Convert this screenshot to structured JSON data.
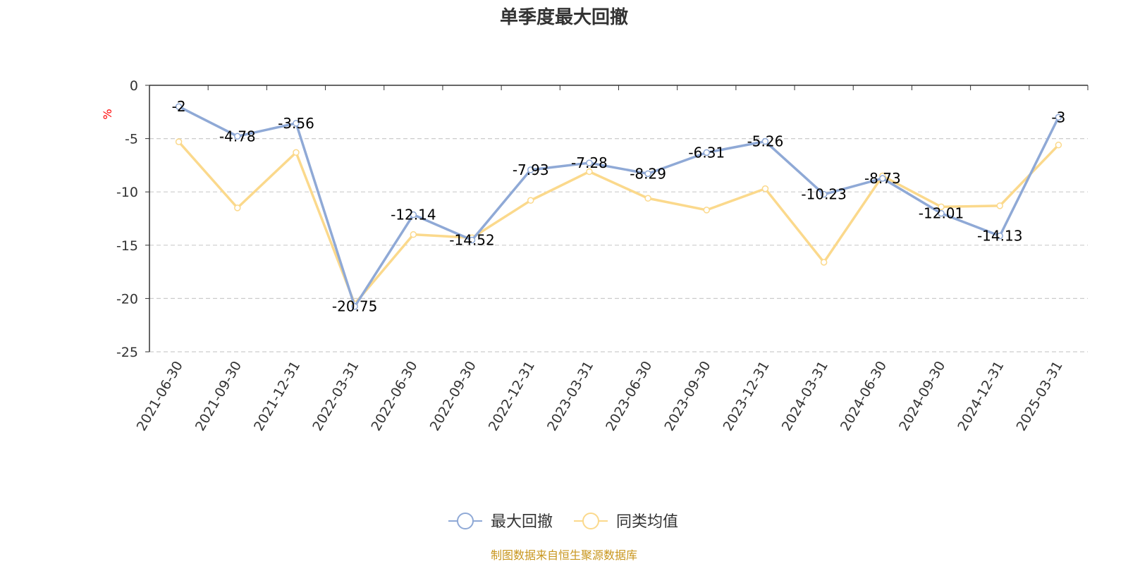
{
  "chart_data": {
    "type": "line",
    "title": "单季度最大回撤",
    "ylabel": "%",
    "categories": [
      "2021-06-30",
      "2021-09-30",
      "2021-12-31",
      "2022-03-31",
      "2022-06-30",
      "2022-09-30",
      "2022-12-31",
      "2023-03-31",
      "2023-06-30",
      "2023-09-30",
      "2023-12-31",
      "2024-03-31",
      "2024-06-30",
      "2024-09-30",
      "2024-12-31",
      "2025-03-31"
    ],
    "ylim": [
      -25,
      0
    ],
    "yticks": [
      "0",
      "-5",
      "-10",
      "-15",
      "-20",
      "-25"
    ],
    "grid": true,
    "legend_position": "bottom",
    "series": [
      {
        "name": "最大回撤",
        "color": "#8fa9d6",
        "labels": true,
        "values": [
          -2,
          -4.78,
          -3.56,
          -20.75,
          -12.14,
          -14.52,
          -7.93,
          -7.28,
          -8.29,
          -6.31,
          -5.26,
          -10.23,
          -8.73,
          -12.01,
          -14.13,
          -3
        ]
      },
      {
        "name": "同类均值",
        "color": "#fbd98c",
        "labels": false,
        "values": [
          -5.3,
          -11.5,
          -6.3,
          -20.5,
          -14.0,
          -14.3,
          -10.8,
          -8.1,
          -10.6,
          -11.7,
          -9.7,
          -16.6,
          -8.5,
          -11.4,
          -11.3,
          -5.6
        ]
      }
    ]
  },
  "footer": "制图数据来自恒生聚源数据库"
}
